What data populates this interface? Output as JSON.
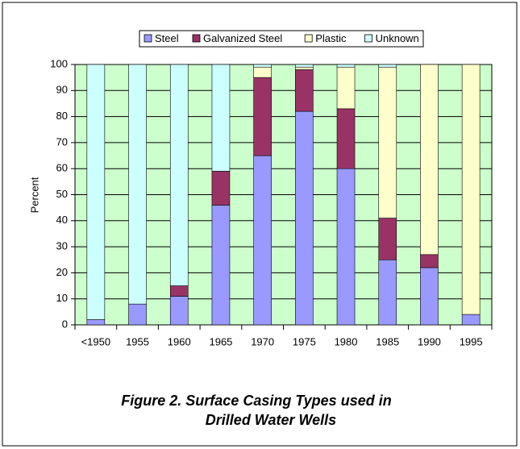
{
  "chart_data": {
    "type": "bar",
    "stacked": true,
    "title": [
      "Figure 2. Surface Casing Types used in",
      "Drilled Water Wells"
    ],
    "y_label": "Percent",
    "categories": [
      "<1950",
      "1955",
      "1960",
      "1965",
      "1970",
      "1975",
      "1980",
      "1985",
      "1990",
      "1995"
    ],
    "series": [
      {
        "name": "Steel",
        "color": "#9999ff",
        "values": [
          2,
          8,
          11,
          46,
          65,
          82,
          60,
          25,
          22,
          4
        ]
      },
      {
        "name": "Galvanized Steel",
        "color": "#993366",
        "values": [
          0,
          0,
          4,
          13,
          30,
          16,
          23,
          16,
          5,
          0
        ]
      },
      {
        "name": "Plastic",
        "color": "#ffffcc",
        "values": [
          0,
          0,
          0,
          0,
          4,
          1,
          16,
          58,
          73,
          96
        ]
      },
      {
        "name": "Unknown",
        "color": "#ccffff",
        "values": [
          98,
          92,
          85,
          41,
          1,
          1,
          1,
          1,
          0,
          0
        ]
      }
    ],
    "ylim": [
      0,
      100
    ],
    "yticks": [
      0,
      10,
      20,
      30,
      40,
      50,
      60,
      70,
      80,
      90,
      100
    ],
    "grid": true,
    "plot_background": "#ccffcc",
    "legend": "top"
  }
}
